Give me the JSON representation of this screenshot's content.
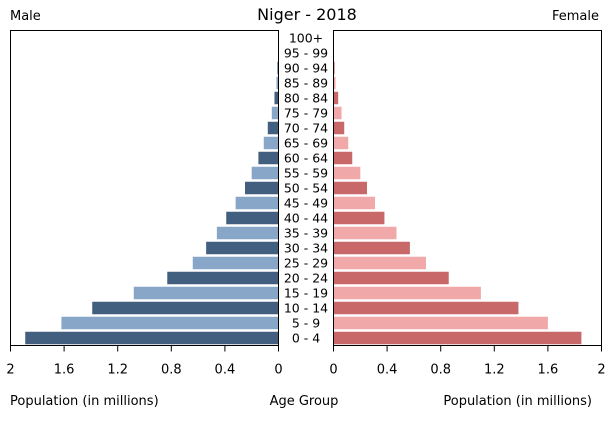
{
  "chart_data": {
    "type": "bar",
    "subtype": "population-pyramid",
    "title": "Niger - 2018",
    "left_label": "Male",
    "right_label": "Female",
    "xlabel_left": "Population (in millions)",
    "xlabel_center": "Age Group",
    "xlabel_right": "Population (in millions)",
    "xlim": [
      0,
      2
    ],
    "x_ticks": [
      0,
      0.4,
      0.8,
      1.2,
      1.6,
      2
    ],
    "x_tick_labels": [
      "0",
      "0.4",
      "0.8",
      "1.2",
      "1.6",
      "2"
    ],
    "categories": [
      "0 - 4",
      "5 - 9",
      "10 - 14",
      "15 - 19",
      "20 - 24",
      "25 - 29",
      "30 - 34",
      "35 - 39",
      "40 - 44",
      "45 - 49",
      "50 - 54",
      "55 - 59",
      "60 - 64",
      "65 - 69",
      "70 - 74",
      "75 - 79",
      "80 - 84",
      "85 - 89",
      "90 - 94",
      "95 - 99",
      "100+"
    ],
    "series": [
      {
        "name": "Male",
        "values": [
          1.89,
          1.62,
          1.39,
          1.08,
          0.83,
          0.64,
          0.54,
          0.46,
          0.39,
          0.32,
          0.25,
          0.2,
          0.15,
          0.11,
          0.08,
          0.05,
          0.03,
          0.015,
          0.008,
          0.003,
          0.001
        ]
      },
      {
        "name": "Female",
        "values": [
          1.85,
          1.6,
          1.38,
          1.1,
          0.86,
          0.69,
          0.57,
          0.47,
          0.38,
          0.31,
          0.25,
          0.2,
          0.14,
          0.11,
          0.08,
          0.06,
          0.035,
          0.015,
          0.008,
          0.003,
          0.001
        ]
      }
    ],
    "colors": {
      "male_dark": "#425f80",
      "male_light": "#88a6c8",
      "female_dark": "#c86868",
      "female_light": "#f0a8a8",
      "frame": "#000000"
    }
  }
}
